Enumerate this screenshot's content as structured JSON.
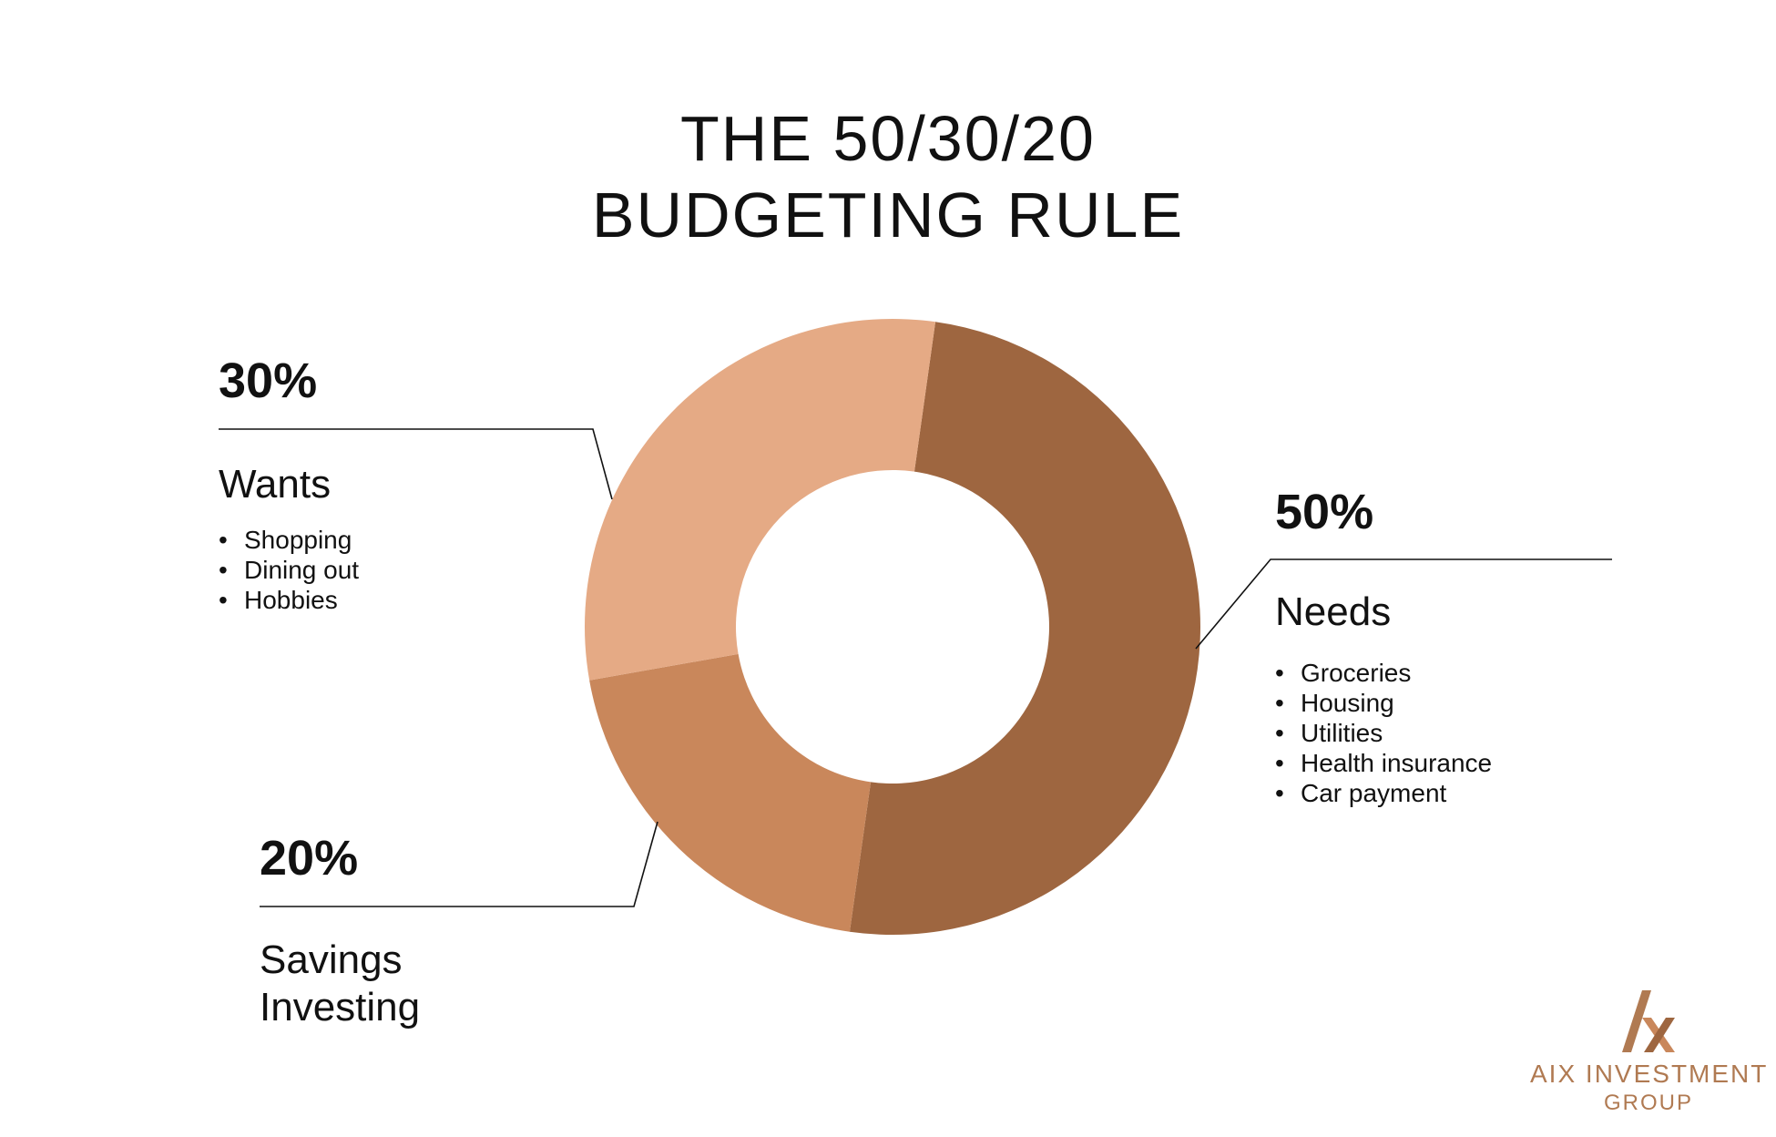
{
  "title": {
    "line1": "THE 50/30/20",
    "line2": "BUDGETING RULE"
  },
  "chart_data": {
    "type": "pie",
    "style": "donut",
    "title": "THE 50/30/20 BUDGETING RULE",
    "slices": [
      {
        "key": "needs",
        "label": "Needs",
        "value": 50,
        "value_label": "50%",
        "color": "#9e6640",
        "items": [
          "Groceries",
          "Housing",
          "Utilities",
          "Health insurance",
          "Car payment"
        ]
      },
      {
        "key": "savings",
        "label": "Savings Investing",
        "value": 20,
        "value_label": "20%",
        "color": "#c9875b",
        "items": []
      },
      {
        "key": "wants",
        "label": "Wants",
        "value": 30,
        "value_label": "30%",
        "color": "#e5aa85",
        "items": [
          "Shopping",
          "Dining out",
          "Hobbies"
        ]
      }
    ]
  },
  "labels": {
    "wants": {
      "pct": "30%",
      "name": "Wants",
      "items": [
        "Shopping",
        "Dining out",
        "Hobbies"
      ]
    },
    "needs": {
      "pct": "50%",
      "name": "Needs",
      "items": [
        "Groceries",
        "Housing",
        "Utilities",
        "Health insurance",
        "Car payment"
      ]
    },
    "savings": {
      "pct": "20%",
      "name_line1": "Savings",
      "name_line2": "Investing"
    }
  },
  "logo": {
    "name": "AIX INVESTMENT",
    "sub": "GROUP",
    "color": "#b07a52"
  }
}
